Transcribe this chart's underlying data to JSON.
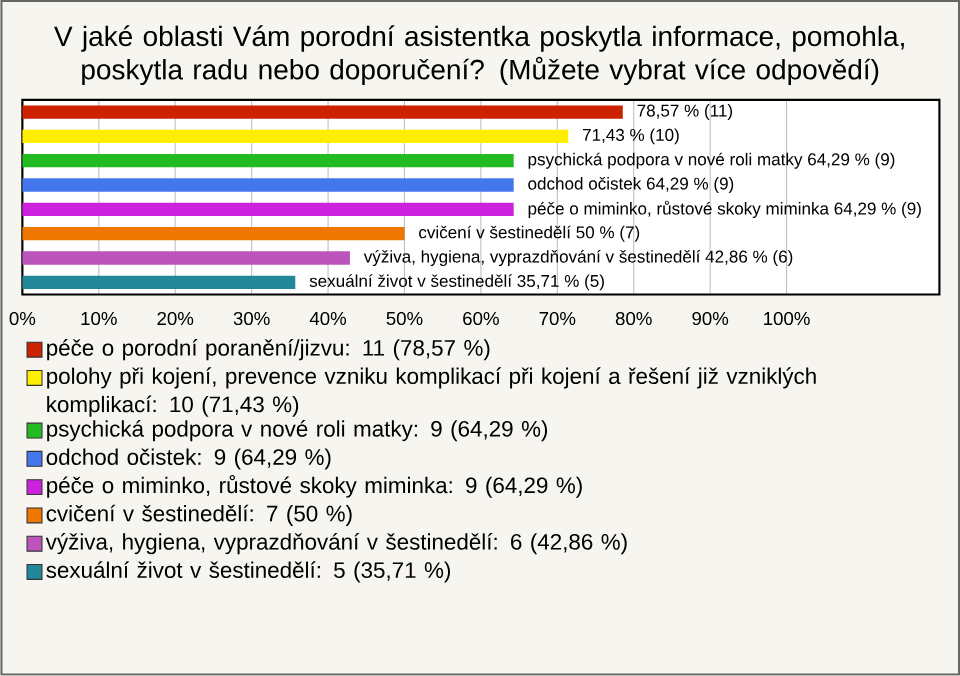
{
  "chart_data": {
    "type": "bar",
    "orientation": "horizontal",
    "title": "V jaké oblasti Vám porodní asistentka poskytla informace, pomohla, poskytla radu nebo doporučení? (Můžete vybrat více odpovědí)",
    "categories": [
      null,
      null,
      null,
      null,
      null,
      null,
      null,
      null
    ],
    "series": [
      {
        "name": "péče o porodní poranění/jizvu: 11 (78,57 %)",
        "color": "#cc2200",
        "values": [
          78.57,
          null,
          null,
          null,
          null,
          null,
          null,
          null
        ],
        "value_labels": [
          "78,57 % (11)",
          null,
          null,
          null,
          null,
          null,
          null,
          null
        ]
      },
      {
        "name": "polohy při kojení, prevence vzniku komplikací při kojení a řešení již vzniklých komplikací: 10 (71,43 %)",
        "color": "#ffee00",
        "values": [
          null,
          71.43,
          null,
          null,
          null,
          null,
          null,
          null
        ],
        "value_labels": [
          null,
          "71,43 % (10)",
          null,
          null,
          null,
          null,
          null,
          null
        ]
      },
      {
        "name": "psychická podpora v nové roli matky: 9 (64,29 %)",
        "color": "#22bb22",
        "values": [
          null,
          null,
          64.29,
          null,
          null,
          null,
          null,
          null
        ],
        "value_labels": [
          null,
          null,
          "psychická podpora v nové roli matky 64,29 % (9)",
          null,
          null,
          null,
          null,
          null
        ]
      },
      {
        "name": "odchod očistek: 9 (64,29 %)",
        "color": "#4477ee",
        "values": [
          null,
          null,
          null,
          64.29,
          null,
          null,
          null,
          null
        ],
        "value_labels": [
          null,
          null,
          null,
          "odchod očistek 64,29 % (9)",
          null,
          null,
          null,
          null
        ]
      },
      {
        "name": "péče o miminko, růstové skoky miminka: 9 (64,29 %)",
        "color": "#cc22dd",
        "values": [
          null,
          null,
          null,
          null,
          64.29,
          null,
          null,
          null
        ],
        "value_labels": [
          null,
          null,
          null,
          null,
          "péče o miminko, růstové skoky miminka 64,29 % (9)",
          null,
          null,
          null
        ]
      },
      {
        "name": "cvičení v šestinedělí: 7 (50 %)",
        "color": "#ee7700",
        "values": [
          null,
          null,
          null,
          null,
          null,
          50,
          null,
          null
        ],
        "value_labels": [
          null,
          null,
          null,
          null,
          null,
          "cvičení v šestinedělí 50 % (7)",
          null,
          null
        ]
      },
      {
        "name": "výživa, hygiena, vyprazdňování v šestinedělí: 6 (42,86 %)",
        "color": "#bb55bb",
        "values": [
          null,
          null,
          null,
          null,
          null,
          null,
          42.86,
          null
        ],
        "value_labels": [
          null,
          null,
          null,
          null,
          null,
          null,
          "výživa, hygiena, vyprazdňování v šestinedělí 42,86 % (6)",
          null
        ]
      },
      {
        "name": "sexuální život v šestinedělí: 5 (35,71 %)",
        "color": "#228899",
        "values": [
          null,
          null,
          null,
          null,
          null,
          null,
          null,
          35.71
        ],
        "value_labels": [
          null,
          null,
          null,
          null,
          null,
          null,
          null,
          "sexuální život v šestinedělí 35,71 % (5)"
        ]
      }
    ],
    "xlim": [
      0,
      120
    ],
    "xticks": [
      {
        "value": 0,
        "label": "0%"
      },
      {
        "value": 10,
        "label": "10%"
      },
      {
        "value": 20,
        "label": "20%"
      },
      {
        "value": 30,
        "label": "30%"
      },
      {
        "value": 40,
        "label": "40%"
      },
      {
        "value": 50,
        "label": "50%"
      },
      {
        "value": 60,
        "label": "60%"
      },
      {
        "value": 70,
        "label": "70%"
      },
      {
        "value": 80,
        "label": "80%"
      },
      {
        "value": 90,
        "label": "90%"
      },
      {
        "value": 100,
        "label": "100%"
      },
      {
        "value": 120,
        "label": null
      }
    ],
    "grid": "x",
    "legend": "bottom",
    "tick_labels": "x"
  }
}
